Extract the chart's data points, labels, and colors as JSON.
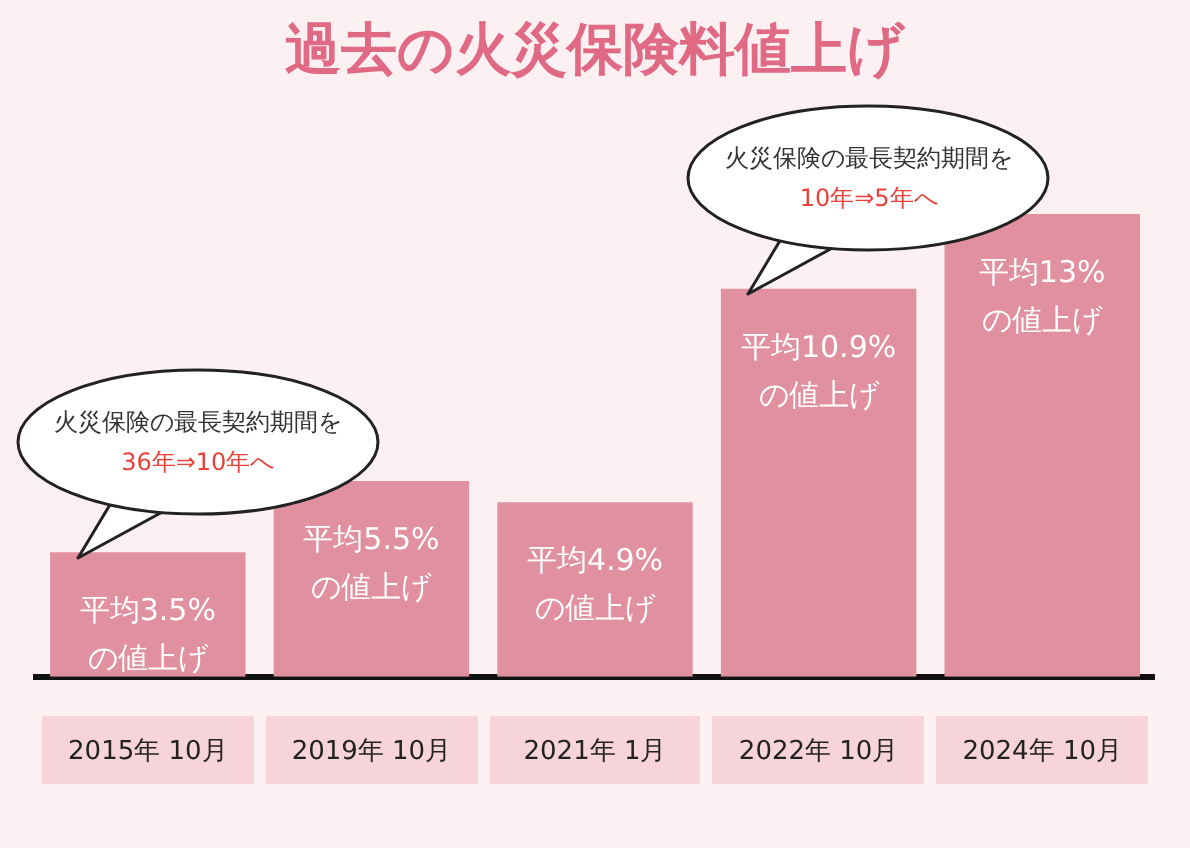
{
  "chart_data": {
    "type": "bar",
    "title": "過去の火災保険料値上げ",
    "categories": [
      "2015年 10月",
      "2019年 10月",
      "2021年 1月",
      "2022年 10月",
      "2024年 10月"
    ],
    "values": [
      3.5,
      5.5,
      4.9,
      10.9,
      13
    ],
    "value_labels": [
      "平均3.5%\nの値上げ",
      "平均5.5%\nの値上げ",
      "平均4.9%\nの値上げ",
      "平均10.9%\nの値上げ",
      "平均13%\nの値上げ"
    ],
    "color": "#e0909f",
    "grid": false,
    "legend": false,
    "tick_labels": "x",
    "annotations": [
      "火災保険の最長契約期間を",
      "36年⇒10年へ",
      "火災保険の最長契約期間を",
      "10年⇒5年へ"
    ]
  }
}
